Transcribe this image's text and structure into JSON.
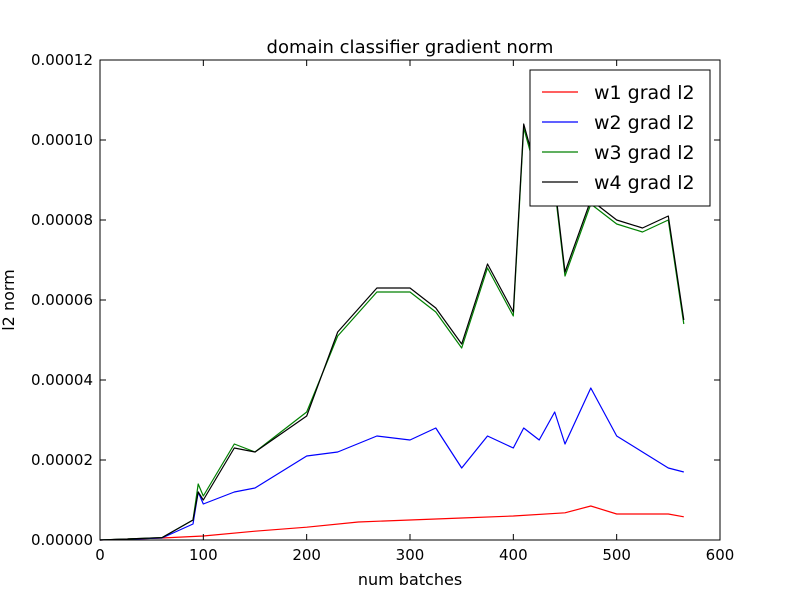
{
  "chart_data": {
    "type": "line",
    "title": "domain classifier gradient norm",
    "xlabel": "num batches",
    "ylabel": "l2 norm",
    "xlim": [
      0,
      600
    ],
    "ylim": [
      0,
      0.00012
    ],
    "x_ticks": [
      0,
      100,
      200,
      300,
      400,
      500,
      600
    ],
    "x_tick_labels": [
      "0",
      "100",
      "200",
      "300",
      "400",
      "500",
      "600"
    ],
    "y_ticks": [
      0,
      2e-05,
      4e-05,
      6e-05,
      8e-05,
      0.0001,
      0.00012
    ],
    "y_tick_labels": [
      "0.00000",
      "0.00002",
      "0.00004",
      "0.00006",
      "0.00008",
      "0.00010",
      "0.00012"
    ],
    "grid": false,
    "legend_position": "top-right",
    "series": [
      {
        "name": "w1 grad l2",
        "color": "#ff0000",
        "x": [
          0,
          60,
          100,
          150,
          200,
          250,
          300,
          350,
          400,
          450,
          475,
          500,
          550,
          565
        ],
        "y": [
          0.0,
          5e-07,
          1e-06,
          2.2e-06,
          3.2e-06,
          4.5e-06,
          5e-06,
          5.5e-06,
          6e-06,
          6.8e-06,
          8.5e-06,
          6.5e-06,
          6.5e-06,
          5.8e-06
        ]
      },
      {
        "name": "w2 grad l2",
        "color": "#0000ff",
        "x": [
          0,
          60,
          90,
          95,
          100,
          130,
          150,
          200,
          230,
          268,
          300,
          325,
          350,
          375,
          400,
          410,
          425,
          440,
          450,
          475,
          500,
          525,
          550,
          565
        ],
        "y": [
          0.0,
          5e-07,
          4e-06,
          1.2e-05,
          9e-06,
          1.2e-05,
          1.3e-05,
          2.1e-05,
          2.2e-05,
          2.6e-05,
          2.5e-05,
          2.8e-05,
          1.8e-05,
          2.6e-05,
          2.3e-05,
          2.8e-05,
          2.5e-05,
          3.2e-05,
          2.4e-05,
          3.8e-05,
          2.6e-05,
          2.2e-05,
          1.8e-05,
          1.7e-05
        ]
      },
      {
        "name": "w3 grad l2",
        "color": "#008000",
        "x": [
          0,
          60,
          90,
          95,
          100,
          130,
          150,
          200,
          230,
          268,
          300,
          325,
          350,
          375,
          400,
          410,
          425,
          440,
          450,
          475,
          500,
          525,
          550,
          565
        ],
        "y": [
          0.0,
          6e-07,
          5e-06,
          1.4e-05,
          1.1e-05,
          2.4e-05,
          2.2e-05,
          3.2e-05,
          5.1e-05,
          6.2e-05,
          6.2e-05,
          5.7e-05,
          4.8e-05,
          6.8e-05,
          5.6e-05,
          0.000103,
          8.9e-05,
          8.8e-05,
          6.6e-05,
          8.4e-05,
          7.9e-05,
          7.7e-05,
          8e-05,
          5.4e-05
        ]
      },
      {
        "name": "w4 grad l2",
        "color": "#000000",
        "x": [
          0,
          60,
          90,
          95,
          100,
          130,
          150,
          200,
          230,
          268,
          300,
          325,
          350,
          375,
          400,
          410,
          425,
          440,
          450,
          475,
          500,
          525,
          550,
          565
        ],
        "y": [
          0.0,
          6e-07,
          5e-06,
          1.2e-05,
          1e-05,
          2.3e-05,
          2.2e-05,
          3.1e-05,
          5.2e-05,
          6.3e-05,
          6.3e-05,
          5.8e-05,
          4.9e-05,
          6.9e-05,
          5.7e-05,
          0.000104,
          9e-05,
          8.9e-05,
          6.7e-05,
          8.5e-05,
          8e-05,
          7.8e-05,
          8.1e-05,
          5.5e-05
        ]
      }
    ]
  }
}
